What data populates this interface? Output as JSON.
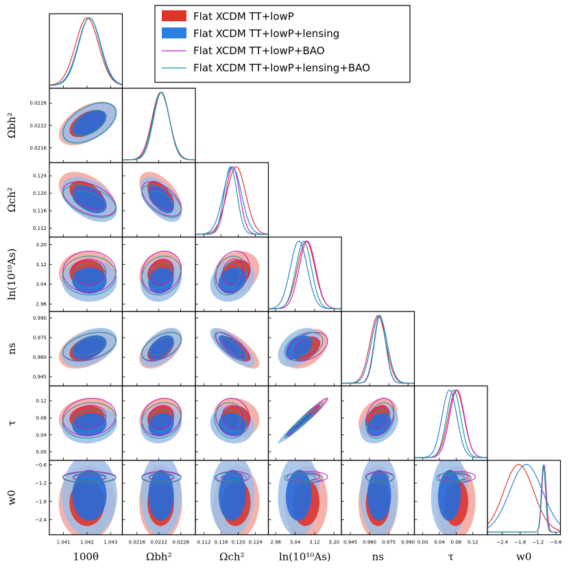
{
  "chart_data": {
    "type": "triangle-corner-plot",
    "title": "",
    "parameters": [
      {
        "name": "theta",
        "label": "100θ",
        "range": [
          1.0404,
          1.0435
        ],
        "ticks": [
          1.041,
          1.042,
          1.043
        ],
        "tick_labels": [
          "1.041",
          "1.042",
          "1.043"
        ]
      },
      {
        "name": "omegabh2",
        "label": "Ωbh²",
        "range": [
          0.0212,
          0.0232
        ],
        "ticks": [
          0.0216,
          0.0222,
          0.0228
        ],
        "tick_labels": [
          "0.0216",
          "0.0222",
          "0.0228"
        ]
      },
      {
        "name": "omegach2",
        "label": "Ωch²",
        "range": [
          0.11,
          0.127
        ],
        "ticks": [
          0.112,
          0.116,
          0.12,
          0.124
        ],
        "tick_labels": [
          "0.112",
          "0.116",
          "0.120",
          "0.124"
        ]
      },
      {
        "name": "lnAs",
        "label": "ln(10¹⁰As)",
        "range": [
          2.93,
          3.23
        ],
        "ticks": [
          2.96,
          3.04,
          3.12,
          3.2
        ],
        "tick_labels": [
          "2.96",
          "3.04",
          "3.12",
          "3.20"
        ]
      },
      {
        "name": "ns",
        "label": "ns",
        "range": [
          0.938,
          0.995
        ],
        "ticks": [
          0.945,
          0.96,
          0.975,
          0.99
        ],
        "tick_labels": [
          "0.945",
          "0.960",
          "0.975",
          "0.990"
        ]
      },
      {
        "name": "tau",
        "label": "τ",
        "range": [
          -0.02,
          0.155
        ],
        "ticks": [
          0.0,
          0.04,
          0.08,
          0.12
        ],
        "tick_labels": [
          "0.00",
          "0.04",
          "0.08",
          "0.12"
        ]
      },
      {
        "name": "w0",
        "label": "w0",
        "range": [
          -2.9,
          -0.45
        ],
        "ticks": [
          -2.4,
          -1.8,
          -1.2,
          -0.6
        ],
        "tick_labels": [
          "−2.4",
          "−1.8",
          "−1.2",
          "−0.6"
        ]
      }
    ],
    "series": [
      {
        "name": "Flat XCDM TT+lowP",
        "color": "#e0352b",
        "style": "filled",
        "mean": [
          1.042,
          0.02225,
          0.1195,
          3.085,
          0.9665,
          0.08,
          -1.85
        ],
        "sigma": [
          0.00049,
          0.00024,
          0.0022,
          0.036,
          0.0062,
          0.019,
          0.5
        ]
      },
      {
        "name": "Flat XCDM TT+lowP+lensing",
        "color": "#2a7fe0",
        "style": "filled",
        "mean": [
          1.0421,
          0.02226,
          0.1186,
          3.055,
          0.9675,
          0.064,
          -1.6
        ],
        "sigma": [
          0.00048,
          0.00023,
          0.0021,
          0.035,
          0.0061,
          0.018,
          0.55
        ]
      },
      {
        "name": "Flat XCDM TT+lowP+BAO",
        "color": "#c21fc8",
        "style": "line",
        "mean": [
          1.0421,
          0.02227,
          0.1187,
          3.09,
          0.968,
          0.082,
          -1.0
        ],
        "sigma": [
          0.00046,
          0.00022,
          0.0016,
          0.034,
          0.0045,
          0.018,
          0.075
        ]
      },
      {
        "name": "Flat XCDM TT+lowP+lensing+BAO",
        "color": "#1a9a9a",
        "style": "line",
        "mean": [
          1.0421,
          0.02227,
          0.1182,
          3.075,
          0.9682,
          0.074,
          -1.02
        ],
        "sigma": [
          0.00046,
          0.00022,
          0.0015,
          0.032,
          0.0044,
          0.017,
          0.07
        ]
      }
    ],
    "correlations": {
      "1-0": 0.5,
      "2-0": -0.45,
      "2-1": -0.55,
      "3-0": 0.0,
      "3-1": 0.15,
      "3-2": 0.2,
      "4-0": 0.4,
      "4-1": 0.5,
      "4-2": -0.75,
      "4-3": 0.4,
      "5-0": 0.1,
      "5-1": 0.15,
      "5-2": -0.1,
      "5-3": 0.97,
      "5-4": 0.3,
      "6-0": 0.0,
      "6-1": 0.0,
      "6-2": 0.05,
      "6-3": 0.05,
      "6-4": 0.0,
      "6-5": 0.05
    },
    "legend": {
      "position": "top-right"
    }
  }
}
